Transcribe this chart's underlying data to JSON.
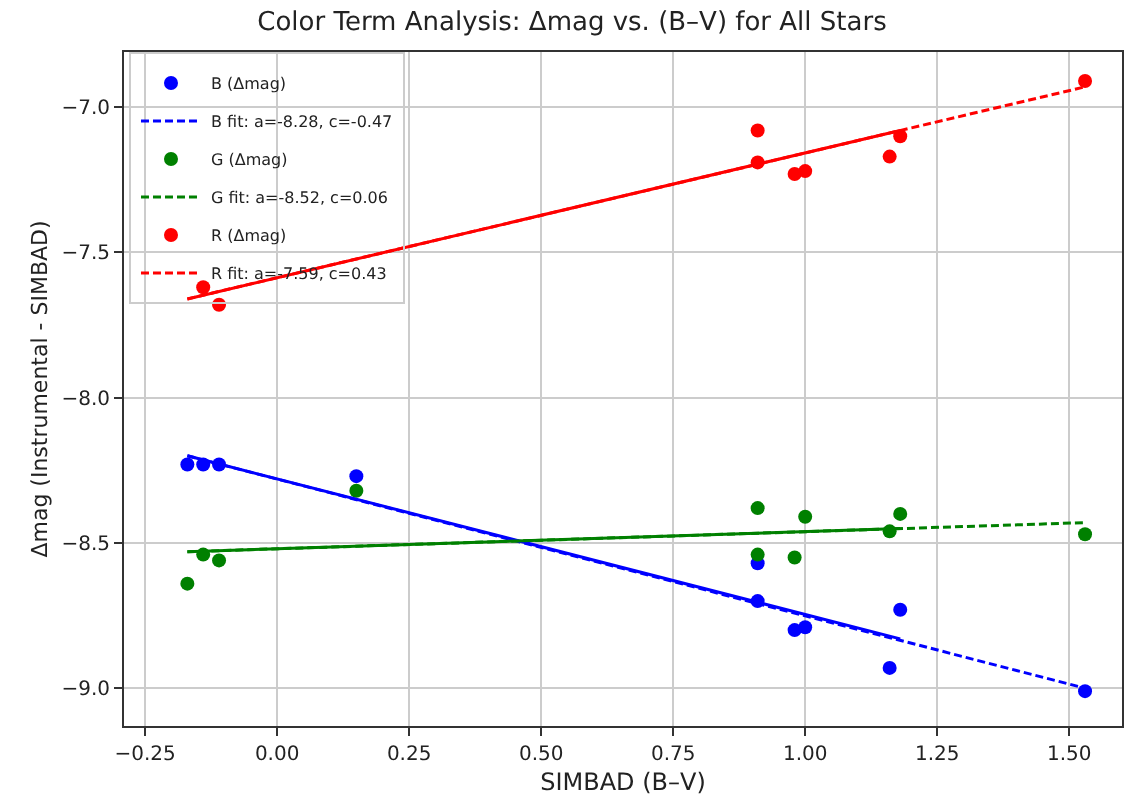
{
  "chart_data": {
    "type": "scatter",
    "title": "Color Term Analysis: Δmag vs. (B–V) for All Stars",
    "xlabel": "SIMBAD (B–V)",
    "ylabel": "Δmag (Instrumental - SIMBAD)",
    "x": [
      -0.17,
      -0.14,
      -0.11,
      0.15,
      0.91,
      0.91,
      0.98,
      1.0,
      1.16,
      1.18,
      1.53
    ],
    "series": [
      {
        "name": "B (Δmag)",
        "color": "#0000ff",
        "marker": "circle",
        "values": [
          -8.23,
          -8.23,
          -8.23,
          -8.27,
          -8.57,
          -8.7,
          -8.8,
          -8.79,
          -8.93,
          -8.73,
          -9.01
        ]
      },
      {
        "name": "B fit: a=-8.28, c=-0.47",
        "color": "#0000ff",
        "type": "line",
        "marker": "none",
        "line_style": "dashed",
        "x": [
          -0.17,
          1.53
        ],
        "values": [
          -8.2,
          -9.0
        ]
      },
      {
        "name": "G (Δmag)",
        "color": "#008000",
        "marker": "circle",
        "values": [
          -8.64,
          -8.54,
          -8.56,
          -8.32,
          -8.38,
          -8.54,
          -8.55,
          -8.41,
          -8.46,
          -8.4,
          -8.47
        ]
      },
      {
        "name": "G fit: a=-8.52, c=0.06",
        "color": "#008000",
        "type": "line",
        "marker": "none",
        "line_style": "dashed",
        "x": [
          -0.17,
          1.53
        ],
        "values": [
          -8.53,
          -8.43
        ]
      },
      {
        "name": "R (Δmag)",
        "color": "#ff0000",
        "marker": "circle",
        "values": [
          null,
          -7.62,
          -7.68,
          null,
          -7.08,
          -7.19,
          -7.23,
          -7.22,
          -7.17,
          -7.1,
          -6.91
        ]
      },
      {
        "name": "R fit: a=-7.59, c=0.43",
        "color": "#ff0000",
        "type": "line",
        "marker": "none",
        "line_style": "dashed",
        "x": [
          -0.17,
          1.53
        ],
        "values": [
          -7.66,
          -6.93
        ]
      },
      {
        "color": "#0000ff",
        "type": "line",
        "marker": "none",
        "line_style": "solid",
        "x": [
          -0.17,
          1.18
        ],
        "values": [
          -8.2,
          -8.83
        ]
      },
      {
        "color": "#008000",
        "type": "line",
        "marker": "none",
        "line_style": "solid",
        "x": [
          -0.17,
          1.18
        ],
        "values": [
          -8.53,
          -8.45
        ]
      },
      {
        "color": "#ff0000",
        "type": "line",
        "marker": "none",
        "line_style": "solid",
        "x": [
          -0.17,
          1.18
        ],
        "values": [
          -7.66,
          -7.08
        ]
      }
    ],
    "xlim": [
      -0.29,
      1.6
    ],
    "ylim": [
      -9.13,
      -6.81
    ],
    "xticks": [
      {
        "value": -0.25,
        "label": "−0.25"
      },
      {
        "value": 0,
        "label": "0.00"
      },
      {
        "value": 0.25,
        "label": "0.25"
      },
      {
        "value": 0.5,
        "label": "0.50"
      },
      {
        "value": 0.75,
        "label": "0.75"
      },
      {
        "value": 1,
        "label": "1.00"
      },
      {
        "value": 1.25,
        "label": "1.25"
      },
      {
        "value": 1.5,
        "label": "1.50"
      }
    ],
    "yticks": [
      {
        "value": -9,
        "label": "−9.0"
      },
      {
        "value": -8.5,
        "label": "−8.5"
      },
      {
        "value": -8,
        "label": "−8.0"
      },
      {
        "value": -7.5,
        "label": "−7.5"
      },
      {
        "value": -7,
        "label": "−7.0"
      }
    ],
    "grid": true,
    "legend": "top left"
  }
}
